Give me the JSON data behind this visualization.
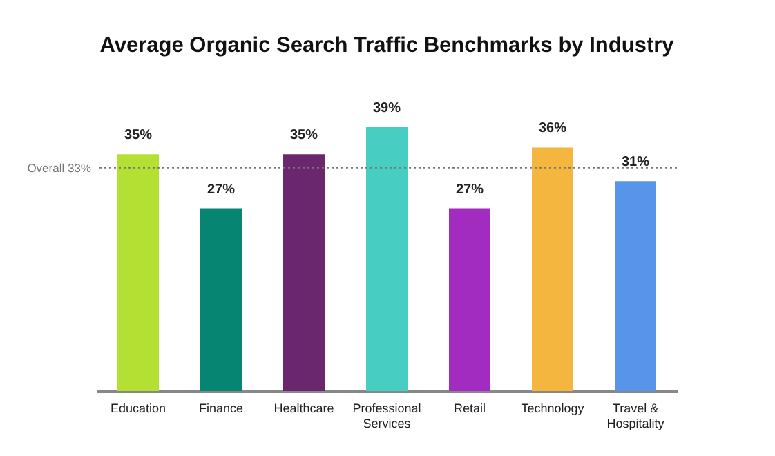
{
  "chart_data": {
    "type": "bar",
    "title": "Average Organic Search Traffic Benchmarks by Industry",
    "categories": [
      "Education",
      "Finance",
      "Healthcare",
      "Professional Services",
      "Retail",
      "Technology",
      "Travel & Hospitality"
    ],
    "values": [
      35,
      27,
      35,
      39,
      27,
      36,
      31
    ],
    "value_labels": [
      "35%",
      "27%",
      "35%",
      "39%",
      "27%",
      "36%",
      "31%"
    ],
    "ref_lines": [
      {
        "axis": "y",
        "value": 33,
        "label": "Overall 33%",
        "color": "#777777",
        "line_style": "dotted"
      }
    ],
    "colors": [
      "#b3e032",
      "#068573",
      "#6a276d",
      "#48cdc3",
      "#a32cc0",
      "#f4b63f",
      "#5794ea"
    ],
    "tick_labels": "x"
  }
}
